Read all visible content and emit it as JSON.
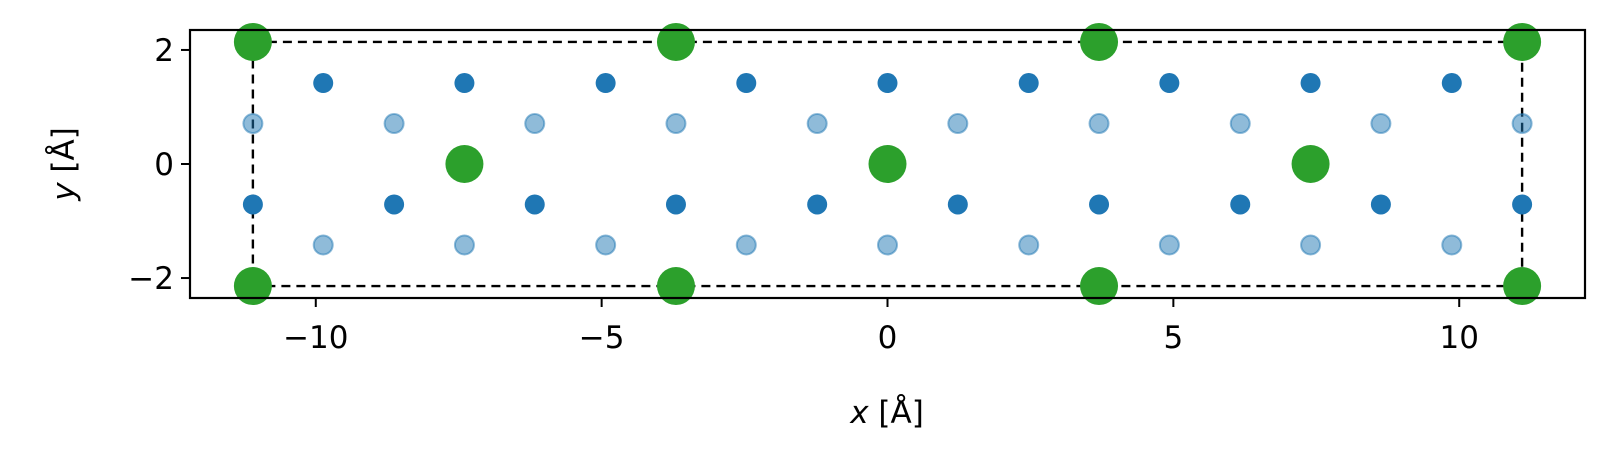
{
  "chart_data": {
    "type": "scatter",
    "title": "",
    "xlabel_var": "x",
    "xlabel_unit": " [Å]",
    "ylabel_var": "y",
    "ylabel_unit": " [Å]",
    "xlim": [
      -12.2,
      12.2
    ],
    "ylim": [
      -2.35,
      2.35
    ],
    "xticks": [
      -10,
      -5,
      0,
      5,
      10
    ],
    "xtick_labels": [
      "−10",
      "−5",
      "0",
      "5",
      "10"
    ],
    "yticks": [
      -2,
      0,
      2
    ],
    "ytick_labels": [
      "−2",
      "0",
      "2"
    ],
    "grid": false,
    "legend": "none",
    "cell_box": {
      "x": [
        -11.1,
        11.1
      ],
      "y": [
        -2.14,
        2.14
      ]
    },
    "series": [
      {
        "color": "#2ca02c",
        "marker": "large-circle",
        "points": [
          [
            -11.1,
            2.14
          ],
          [
            -3.7,
            2.14
          ],
          [
            3.7,
            2.14
          ],
          [
            11.1,
            2.14
          ],
          [
            -7.4,
            0
          ],
          [
            0,
            0
          ],
          [
            7.4,
            0
          ],
          [
            -11.1,
            -2.14
          ],
          [
            -3.7,
            -2.14
          ],
          [
            3.7,
            -2.14
          ],
          [
            11.1,
            -2.14
          ]
        ]
      },
      {
        "color": "#1f77b4",
        "marker": "solid-circle",
        "points": [
          [
            -9.87,
            1.42
          ],
          [
            -7.4,
            1.42
          ],
          [
            -4.93,
            1.42
          ],
          [
            -2.47,
            1.42
          ],
          [
            0,
            1.42
          ],
          [
            2.47,
            1.42
          ],
          [
            4.93,
            1.42
          ],
          [
            7.4,
            1.42
          ],
          [
            9.87,
            1.42
          ],
          [
            -11.1,
            -0.71
          ],
          [
            -8.63,
            -0.71
          ],
          [
            -6.17,
            -0.71
          ],
          [
            -3.7,
            -0.71
          ],
          [
            -1.23,
            -0.71
          ],
          [
            1.23,
            -0.71
          ],
          [
            3.7,
            -0.71
          ],
          [
            6.17,
            -0.71
          ],
          [
            8.63,
            -0.71
          ],
          [
            11.1,
            -0.71
          ]
        ]
      },
      {
        "color": "#1f77b4",
        "marker": "faded-circle",
        "points": [
          [
            -11.1,
            0.71
          ],
          [
            -8.63,
            0.71
          ],
          [
            -6.17,
            0.71
          ],
          [
            -3.7,
            0.71
          ],
          [
            -1.23,
            0.71
          ],
          [
            1.23,
            0.71
          ],
          [
            3.7,
            0.71
          ],
          [
            6.17,
            0.71
          ],
          [
            8.63,
            0.71
          ],
          [
            11.1,
            0.71
          ],
          [
            -9.87,
            -1.42
          ],
          [
            -7.4,
            -1.42
          ],
          [
            -4.93,
            -1.42
          ],
          [
            -2.47,
            -1.42
          ],
          [
            0,
            -1.42
          ],
          [
            2.47,
            -1.42
          ],
          [
            4.93,
            -1.42
          ],
          [
            7.4,
            -1.42
          ],
          [
            9.87,
            -1.42
          ]
        ]
      }
    ]
  }
}
